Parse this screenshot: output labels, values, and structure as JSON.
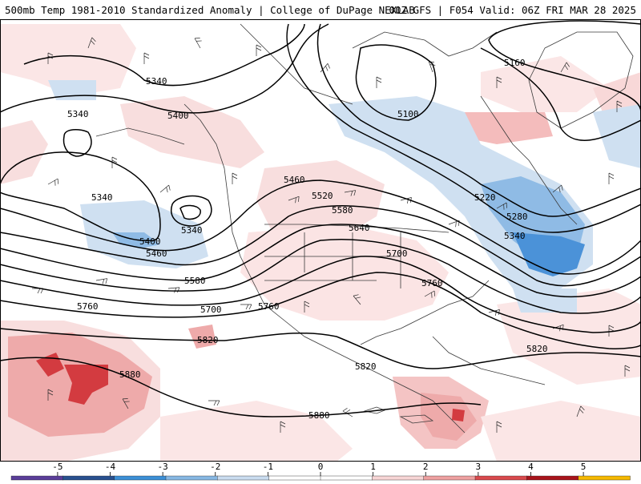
{
  "header": {
    "title": "500mb Temp 1981-2010 Standardized Anomaly | College of DuPage NEXLAB",
    "run_info": "00Z GFS | F054 Valid: 06Z FRI MAR 28 2025"
  },
  "contour_labels": [
    {
      "id": "5340-a",
      "text": "5340"
    },
    {
      "id": "5340-b",
      "text": "5340"
    },
    {
      "id": "5340-c",
      "text": "5340"
    },
    {
      "id": "5340-d",
      "text": "5340"
    },
    {
      "id": "5340-e",
      "text": "5340"
    },
    {
      "id": "5400-a",
      "text": "5400"
    },
    {
      "id": "5400-b",
      "text": "5400"
    },
    {
      "id": "5460-a",
      "text": "5460"
    },
    {
      "id": "5460-b",
      "text": "5460"
    },
    {
      "id": "5520",
      "text": "5520"
    },
    {
      "id": "5580-a",
      "text": "5580"
    },
    {
      "id": "5580-b",
      "text": "5580"
    },
    {
      "id": "5640",
      "text": "5640"
    },
    {
      "id": "5700-a",
      "text": "5700"
    },
    {
      "id": "5700-b",
      "text": "5700"
    },
    {
      "id": "5760-a",
      "text": "5760"
    },
    {
      "id": "5760-b",
      "text": "5760"
    },
    {
      "id": "5760-c",
      "text": "5760"
    },
    {
      "id": "5820-a",
      "text": "5820"
    },
    {
      "id": "5820-b",
      "text": "5820"
    },
    {
      "id": "5820-c",
      "text": "5820"
    },
    {
      "id": "5880-a",
      "text": "5880"
    },
    {
      "id": "5880-b",
      "text": "5880"
    },
    {
      "id": "5100",
      "text": "5100"
    },
    {
      "id": "5160",
      "text": "5160"
    },
    {
      "id": "5220",
      "text": "5220"
    },
    {
      "id": "5280",
      "text": "5280"
    }
  ],
  "colorbar": {
    "ticks": [
      "-5",
      "-4",
      "-3",
      "-2",
      "-1",
      "0",
      "1",
      "2",
      "3",
      "4",
      "5"
    ],
    "colors": {
      "neg5": "#5a3d99",
      "neg4": "#28508f",
      "neg3": "#3b8fd6",
      "neg2": "#86b7e3",
      "neg1": "#c9dcef",
      "zero": "#ffffff",
      "pos1": "#f7d5d5",
      "pos2": "#eea0a0",
      "pos3": "#d9494c",
      "pos4": "#a8141b",
      "pos5": "#f5b800"
    }
  },
  "colors": {
    "contour": "#000000",
    "coast": "#3a3a3a",
    "warm_light": "#f8dede",
    "warm_mid": "#eeaaaa",
    "warm_strong": "#d33b40",
    "cold_light": "#cfe0f1",
    "cold_mid": "#8fbbe5",
    "cold_strong": "#4b92d8"
  }
}
